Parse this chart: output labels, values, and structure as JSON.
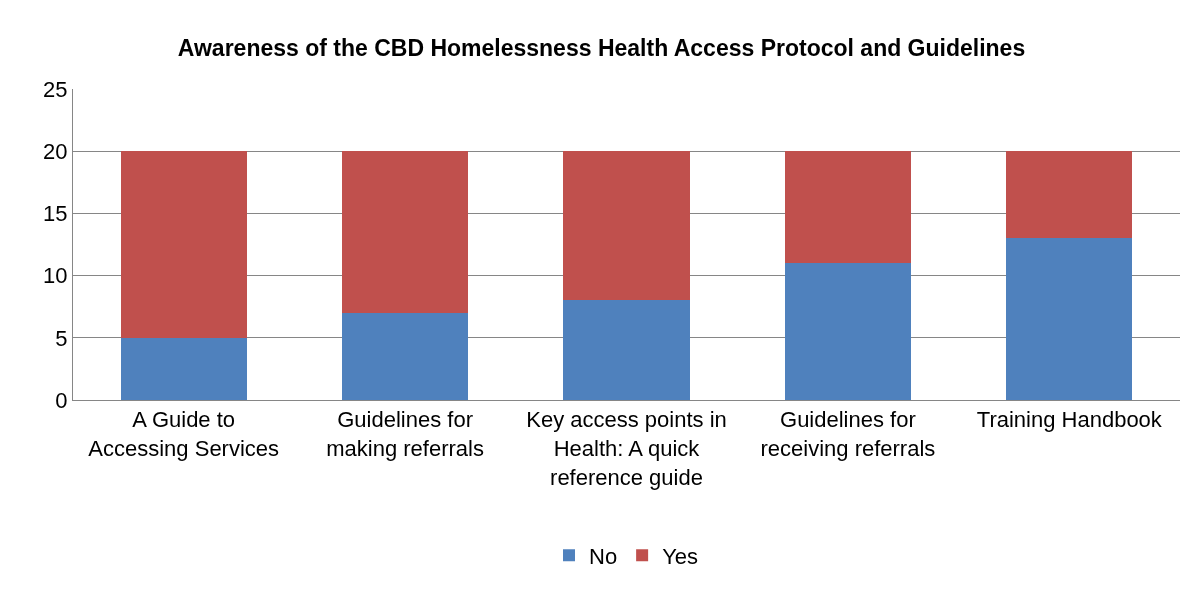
{
  "chart_data": {
    "type": "bar",
    "title": "Awareness of the CBD Homelessness Health Access Protocol and Guidelines",
    "categories": [
      "A Guide to Accessing Services",
      "Guidelines for making referrals",
      "Key access points in Health: A quick reference guide",
      "Guidelines for receiving referrals",
      "Training Handbook"
    ],
    "series": [
      {
        "name": "No",
        "color": "#4f81bd",
        "values": [
          5,
          7,
          8,
          11,
          13
        ]
      },
      {
        "name": "Yes",
        "color": "#c0504d",
        "values": [
          15,
          13,
          12,
          9,
          7
        ]
      }
    ],
    "stacked": true,
    "ylim": [
      0,
      25
    ],
    "yticks": [
      0,
      5,
      10,
      15,
      20,
      25
    ],
    "grid": "y",
    "legend": "bottom"
  }
}
